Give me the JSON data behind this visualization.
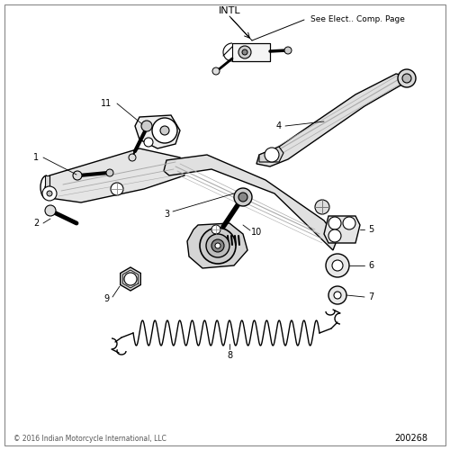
{
  "title": "INTL",
  "subtitle": "See Elect.. Comp. Page",
  "copyright": "© 2016 Indian Motorcycle International, LLC",
  "part_number": "200268",
  "bg_color": "#ffffff",
  "line_color": "#000000",
  "figsize": [
    5.0,
    5.0
  ],
  "dpi": 100,
  "border_color": "#aaaaaa",
  "text_color": "#444444",
  "footer_color": "#555555"
}
